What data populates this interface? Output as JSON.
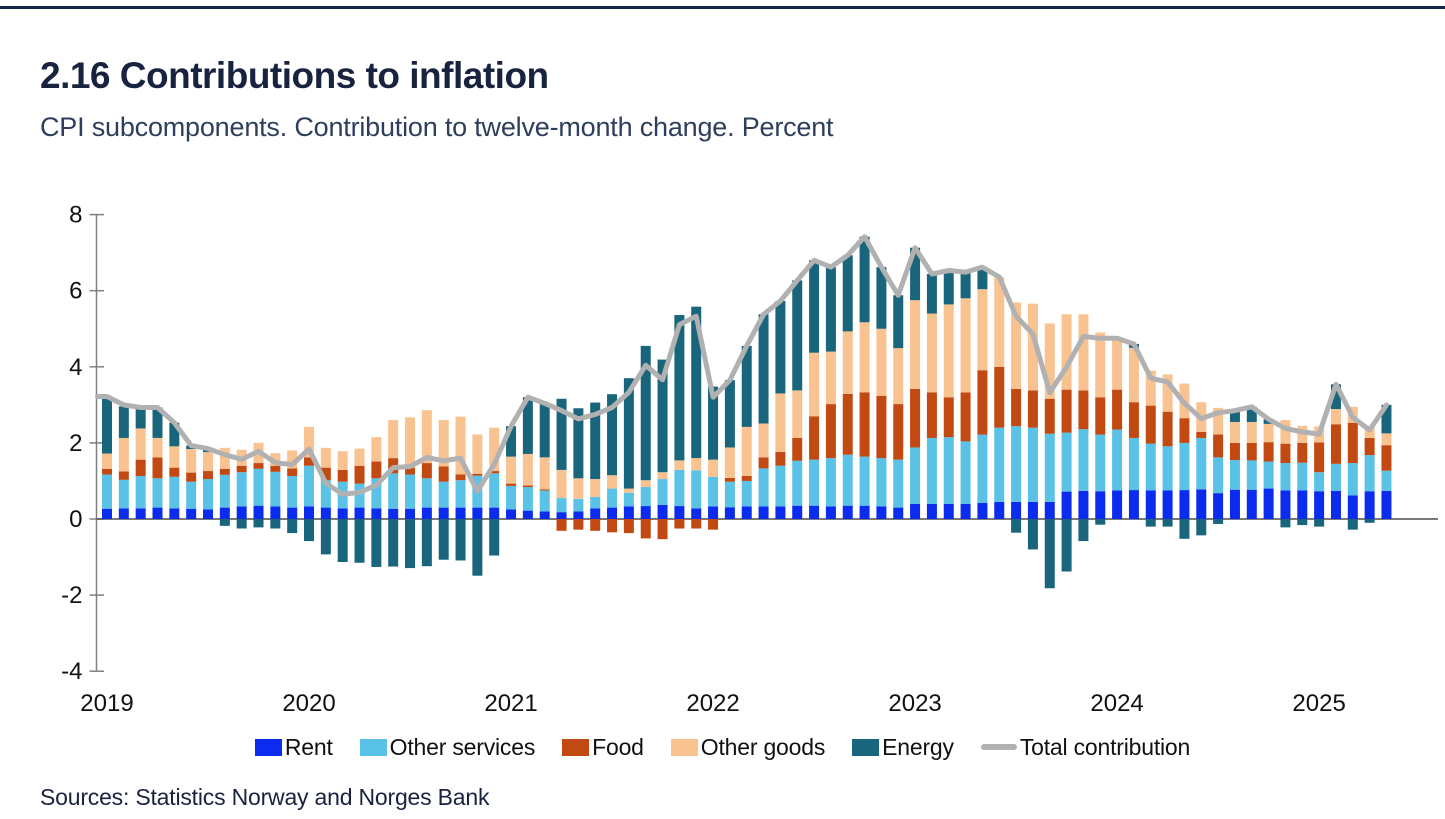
{
  "header": {
    "title": "2.16 Contributions to inflation",
    "subtitle": "CPI subcomponents. Contribution to twelve-month change. Percent"
  },
  "footer": {
    "sources": "Sources: Statistics Norway and  Norges Bank"
  },
  "colors": {
    "accent_rule": "#16234d",
    "title_text": "#17233f",
    "subtitle_text": "#2f3e5c",
    "axis": "#808080",
    "zero_line": "#4d4d4d",
    "tick_label": "#111111",
    "rent": "#0b2bee",
    "other_services": "#5ac2e6",
    "food": "#c24912",
    "other_goods": "#f8c391",
    "energy": "#19657c",
    "total_line": "#b1b1b1"
  },
  "chart_data": {
    "type": "bar",
    "subtype": "stacked-bar-with-line",
    "frequency": "monthly",
    "start": "2019-01",
    "end": "2025-05",
    "x_year_labels": [
      "2019",
      "2020",
      "2021",
      "2022",
      "2023",
      "2024",
      "2025"
    ],
    "ylabel": "",
    "xlabel": "",
    "ylim": [
      -4,
      8
    ],
    "ytick_step": 2,
    "grid": false,
    "legend_position": "bottom",
    "series": [
      {
        "name": "Rent",
        "color": "#0b2bee",
        "values": [
          0.27,
          0.28,
          0.28,
          0.3,
          0.28,
          0.27,
          0.25,
          0.3,
          0.33,
          0.35,
          0.33,
          0.3,
          0.33,
          0.3,
          0.28,
          0.3,
          0.28,
          0.27,
          0.27,
          0.3,
          0.3,
          0.3,
          0.3,
          0.3,
          0.25,
          0.22,
          0.2,
          0.18,
          0.2,
          0.28,
          0.3,
          0.33,
          0.34,
          0.37,
          0.34,
          0.28,
          0.33,
          0.31,
          0.33,
          0.33,
          0.33,
          0.35,
          0.35,
          0.33,
          0.35,
          0.35,
          0.33,
          0.3,
          0.4,
          0.4,
          0.4,
          0.4,
          0.42,
          0.45,
          0.45,
          0.45,
          0.45,
          0.72,
          0.74,
          0.73,
          0.75,
          0.76,
          0.75,
          0.75,
          0.76,
          0.78,
          0.68,
          0.77,
          0.77,
          0.8,
          0.75,
          0.75,
          0.73,
          0.74,
          0.62,
          0.73,
          0.74
        ]
      },
      {
        "name": "Other services",
        "color": "#5ac2e6",
        "values": [
          0.9,
          0.75,
          0.85,
          0.77,
          0.83,
          0.71,
          0.8,
          0.86,
          0.9,
          0.97,
          0.91,
          0.83,
          1.07,
          0.72,
          0.7,
          0.63,
          0.79,
          0.93,
          0.9,
          0.77,
          0.68,
          0.72,
          0.84,
          0.9,
          0.62,
          0.62,
          0.55,
          0.37,
          0.33,
          0.3,
          0.5,
          0.36,
          0.5,
          0.68,
          0.95,
          1.0,
          0.78,
          0.67,
          0.67,
          1.0,
          1.07,
          1.18,
          1.21,
          1.27,
          1.34,
          1.29,
          1.27,
          1.26,
          1.48,
          1.73,
          1.75,
          1.64,
          1.8,
          1.95,
          1.99,
          1.95,
          1.79,
          1.55,
          1.62,
          1.49,
          1.6,
          1.37,
          1.23,
          1.16,
          1.24,
          1.35,
          0.94,
          0.78,
          0.77,
          0.71,
          0.72,
          0.73,
          0.5,
          0.71,
          0.85,
          0.95,
          0.53
        ]
      },
      {
        "name": "Food",
        "color": "#c24912",
        "values": [
          0.15,
          0.22,
          0.43,
          0.55,
          0.24,
          0.24,
          0.21,
          0.16,
          0.17,
          0.15,
          0.16,
          0.2,
          0.22,
          0.33,
          0.31,
          0.47,
          0.44,
          0.4,
          0.18,
          0.4,
          0.4,
          0.15,
          0.05,
          0.06,
          0.06,
          0.04,
          0.03,
          -0.31,
          -0.28,
          -0.31,
          -0.35,
          -0.37,
          -0.51,
          -0.53,
          -0.25,
          -0.25,
          -0.28,
          0.1,
          0.13,
          0.29,
          0.36,
          0.6,
          1.14,
          1.42,
          1.6,
          1.69,
          1.64,
          1.46,
          1.54,
          1.2,
          1.05,
          1.29,
          1.69,
          1.6,
          0.98,
          0.98,
          0.92,
          1.13,
          1.02,
          0.98,
          1.05,
          0.94,
          1.0,
          0.91,
          0.65,
          0.16,
          0.6,
          0.45,
          0.46,
          0.51,
          0.51,
          0.52,
          0.78,
          1.04,
          1.06,
          0.45,
          0.67
        ]
      },
      {
        "name": "Other goods",
        "color": "#f8c391",
        "values": [
          0.4,
          0.88,
          0.82,
          0.51,
          0.56,
          0.62,
          0.5,
          0.55,
          0.42,
          0.53,
          0.33,
          0.47,
          0.8,
          0.52,
          0.49,
          0.45,
          0.64,
          1.0,
          1.32,
          1.39,
          1.22,
          1.52,
          1.03,
          1.14,
          0.71,
          0.83,
          0.84,
          0.74,
          0.54,
          0.47,
          0.35,
          0.11,
          0.18,
          0.18,
          0.25,
          0.32,
          0.45,
          0.8,
          1.29,
          0.89,
          1.54,
          1.25,
          1.67,
          1.38,
          1.64,
          1.84,
          1.76,
          1.47,
          2.33,
          2.07,
          2.44,
          2.47,
          2.13,
          2.36,
          2.27,
          2.28,
          1.98,
          1.98,
          2.0,
          1.7,
          1.3,
          1.43,
          0.92,
          0.98,
          0.91,
          0.78,
          0.7,
          0.55,
          0.55,
          0.48,
          0.62,
          0.45,
          0.42,
          0.4,
          0.42,
          0.31,
          0.31
        ]
      },
      {
        "name": "Energy",
        "color": "#19657c",
        "values": [
          1.5,
          0.83,
          0.51,
          0.8,
          0.62,
          0.09,
          0.09,
          -0.18,
          -0.25,
          -0.22,
          -0.25,
          -0.37,
          -0.58,
          -0.93,
          -1.13,
          -1.15,
          -1.26,
          -1.25,
          -1.29,
          -1.24,
          -1.07,
          -1.09,
          -1.49,
          -0.96,
          0.8,
          1.49,
          1.42,
          1.87,
          1.84,
          2.01,
          2.13,
          2.9,
          3.53,
          2.96,
          3.82,
          3.98,
          1.92,
          1.77,
          2.13,
          2.87,
          2.43,
          2.89,
          2.43,
          2.22,
          2.0,
          2.25,
          1.62,
          1.39,
          1.38,
          1.04,
          0.89,
          0.69,
          0.58,
          0.0,
          -0.36,
          -0.8,
          -1.82,
          -1.38,
          -0.58,
          -0.15,
          0.05,
          0.1,
          -0.2,
          -0.2,
          -0.52,
          -0.43,
          -0.13,
          0.3,
          0.4,
          0.12,
          -0.22,
          -0.16,
          -0.2,
          0.65,
          -0.28,
          -0.1,
          0.75
        ]
      }
    ],
    "line_series": {
      "name": "Total contribution",
      "color": "#b1b1b1",
      "values": [
        3.22,
        3.0,
        2.93,
        2.93,
        2.53,
        1.93,
        1.85,
        1.69,
        1.57,
        1.78,
        1.48,
        1.43,
        1.84,
        0.94,
        0.65,
        0.7,
        0.89,
        1.35,
        1.38,
        1.62,
        1.53,
        1.6,
        0.73,
        1.44,
        2.44,
        3.2,
        3.04,
        2.85,
        2.63,
        2.75,
        2.93,
        3.33,
        4.04,
        3.66,
        5.11,
        5.33,
        3.2,
        3.65,
        4.55,
        5.38,
        5.73,
        6.27,
        6.8,
        6.62,
        6.93,
        7.42,
        6.62,
        5.88,
        7.13,
        6.44,
        6.53,
        6.49,
        6.62,
        6.36,
        5.33,
        4.86,
        3.32,
        4.0,
        4.8,
        4.75,
        4.75,
        4.6,
        3.7,
        3.6,
        3.04,
        2.64,
        2.79,
        2.85,
        2.95,
        2.62,
        2.38,
        2.29,
        2.23,
        3.54,
        2.67,
        2.34,
        3.0
      ]
    },
    "ytick_labels": [
      "8",
      "6",
      "4",
      "2",
      "0",
      "-2",
      "-4"
    ]
  }
}
